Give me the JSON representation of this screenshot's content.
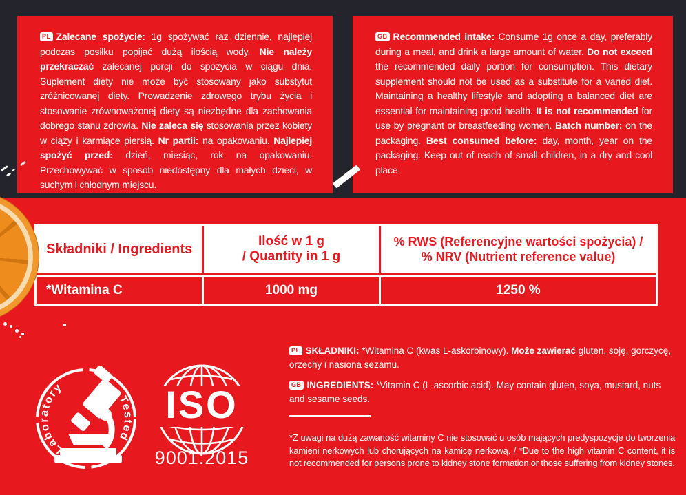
{
  "colors": {
    "red": "#e7191f",
    "dark_background": "#24252c",
    "white": "#ffffff",
    "orange_peel": "#f0982b",
    "orange_flesh": "#ef8c1e"
  },
  "panels": {
    "pl": {
      "flag": "PL",
      "segments": [
        {
          "t": "Zalecane spożycie:",
          "b": true
        },
        {
          "t": " 1g spożywać raz dziennie, najlepiej podczas posiłku popijać dużą ilością wody. ",
          "b": false
        },
        {
          "t": "Nie należy przekraczać",
          "b": true
        },
        {
          "t": " zalecanej porcji do spożycia w ciągu dnia. Suplement diety nie może być stosowany jako substytut zróżnicowanej diety. Prowadzenie zdrowego trybu życia i stosowanie zrównoważonej diety są niezbędne dla zachowania dobrego stanu zdrowia. ",
          "b": false
        },
        {
          "t": "Nie zaleca się",
          "b": true
        },
        {
          "t": " stosowania przez kobiety w ciąży i karmiące piersią. ",
          "b": false
        },
        {
          "t": "Nr partii:",
          "b": true
        },
        {
          "t": " na opakowaniu. ",
          "b": false
        },
        {
          "t": "Najlepiej spożyć przed:",
          "b": true
        },
        {
          "t": " dzień, miesiąc, rok na opakowaniu. Przechowywać w sposób niedostępny dla małych dzieci, w suchym i chłodnym miejscu.",
          "b": false
        }
      ]
    },
    "en": {
      "flag": "GB",
      "segments": [
        {
          "t": "Recommended intake:",
          "b": true
        },
        {
          "t": " Consume 1g once a day, preferably during a meal, and drink a large amount of water. ",
          "b": false
        },
        {
          "t": "Do not exceed",
          "b": true
        },
        {
          "t": " the recommended daily portion for consumption. This dietary supplement should not be used as a substitute for a varied diet. Maintaining a healthy lifestyle and adopting a balanced diet are essential for maintaining good health. ",
          "b": false
        },
        {
          "t": "It is not recommended",
          "b": true
        },
        {
          "t": " for use by pregnant or breastfeeding women. ",
          "b": false
        },
        {
          "t": "Batch number:",
          "b": true
        },
        {
          "t": " on the packaging. ",
          "b": false
        },
        {
          "t": "Best consumed before:",
          "b": true
        },
        {
          "t": " day, month, year on the packaging. Keep out of reach of small children, in a dry and cool place.",
          "b": false
        }
      ]
    }
  },
  "table": {
    "headers": [
      {
        "lines": [
          "Składniki / Ingredients"
        ]
      },
      {
        "lines": [
          "Ilość w 1 g",
          "/ Quantity in 1 g"
        ]
      },
      {
        "lines": [
          "% RWS (Referencyjne wartości spożycia) /",
          "% NRV (Nutrient reference value)"
        ]
      }
    ],
    "rows": [
      {
        "ingredient": "*Witamina C",
        "quantity": "1000 mg",
        "rws": "1250 %"
      }
    ]
  },
  "ingredients": {
    "pl": {
      "flag": "PL",
      "segments": [
        {
          "t": "SKŁADNIKI:",
          "b": true
        },
        {
          "t": " *Witamina C (kwas L-askorbinowy). ",
          "b": false
        },
        {
          "t": "Może zawierać",
          "b": true
        },
        {
          "t": " gluten, soję, gorczycę, orzechy i nasiona sezamu.",
          "b": false
        }
      ]
    },
    "en": {
      "flag": "GB",
      "segments": [
        {
          "t": "INGREDIENTS:",
          "b": true
        },
        {
          "t": " *Vitamin C (L-ascorbic acid). May contain gluten, soya, mustard, nuts and sesame seeds.",
          "b": false
        }
      ]
    }
  },
  "footnote": "*Z uwagi na dużą zawartość witaminy C nie stosować u osób mających predyspozycje do tworzenia kamieni nerkowych lub chorujących na kamicę nerkową. / *Due to the high vitamin C content, it is not recommended for persons prone to kidney stone formation or those suffering from kidney stones.",
  "badges": {
    "lab": {
      "arc_left": "Laboratory",
      "arc_right": "Tested"
    },
    "iso": {
      "title": "ISO",
      "subtitle": "9001:2015"
    }
  }
}
